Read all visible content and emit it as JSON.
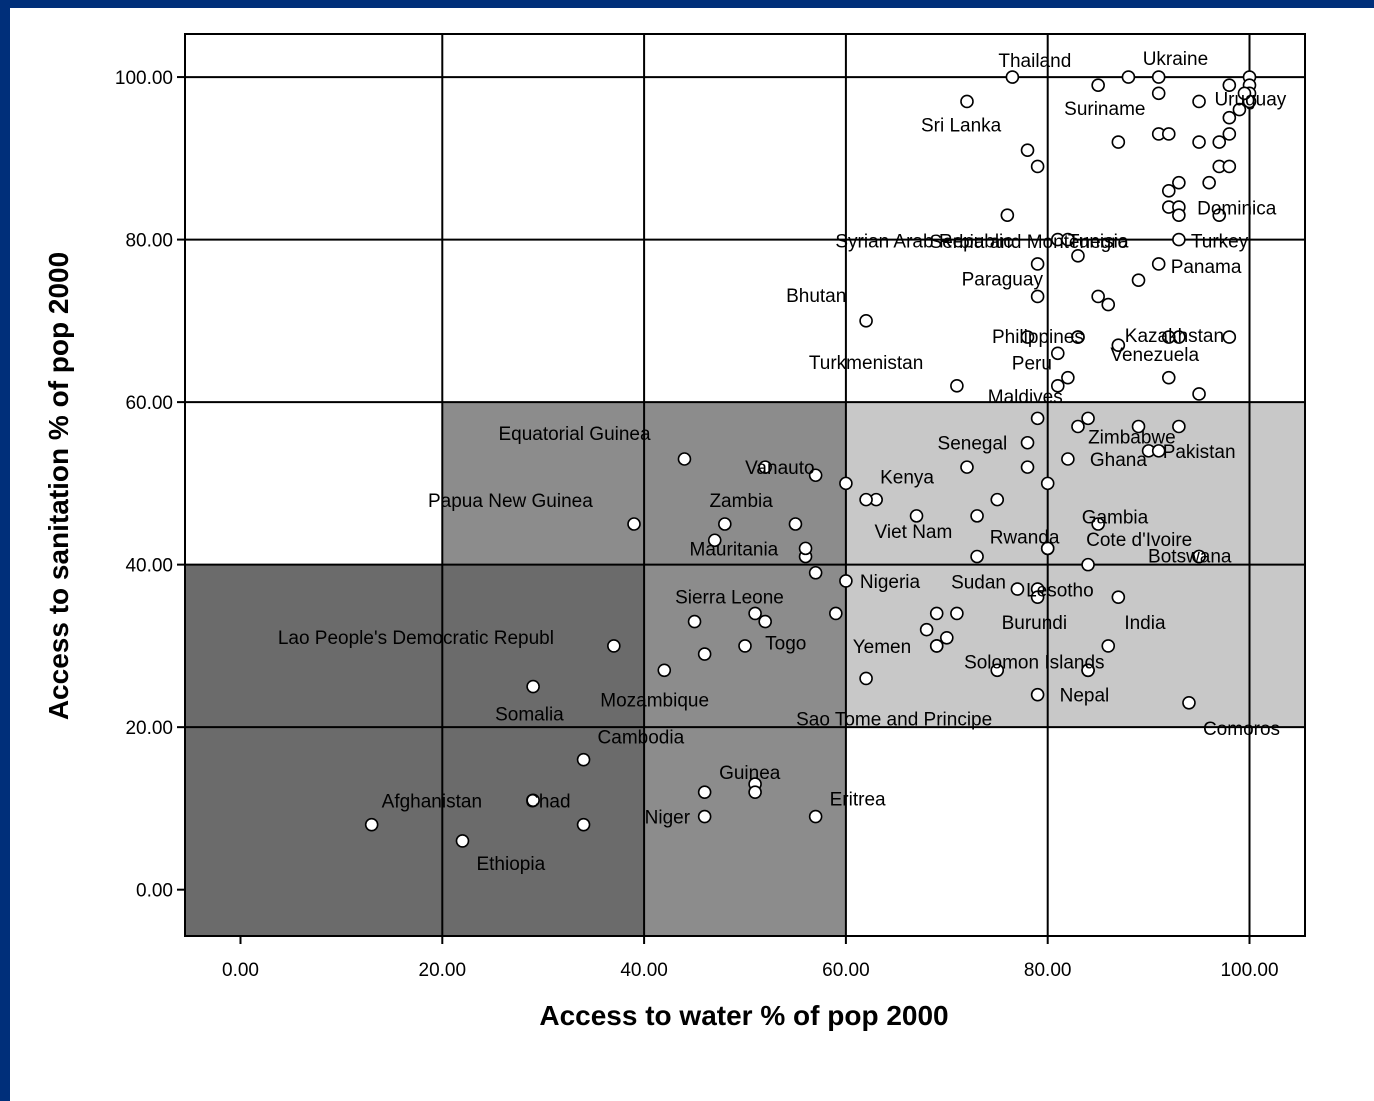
{
  "slide": {
    "background": "#002f7a"
  },
  "chart_data": {
    "type": "scatter",
    "title": "",
    "xlabel": "Access to water % of pop 2000",
    "ylabel": "Access to sanitation % of pop 2000",
    "xlim": [
      -5.5,
      105.5
    ],
    "ylim": [
      -5.7,
      105.3
    ],
    "xticks": [
      "0.00",
      "20.00",
      "40.00",
      "60.00",
      "80.00",
      "100.00"
    ],
    "yticks": [
      "0.00",
      "20.00",
      "40.00",
      "60.00",
      "80.00",
      "100.00"
    ],
    "grid": true,
    "legend": "none",
    "regions": [
      {
        "x": [
          -5.5,
          40
        ],
        "y": [
          -5.7,
          40
        ],
        "color": "#6b6b6b"
      },
      {
        "x": [
          20,
          60
        ],
        "y": [
          40,
          60
        ],
        "color": "#8c8c8c"
      },
      {
        "x": [
          40,
          60
        ],
        "y": [
          -5.7,
          40
        ],
        "color": "#8c8c8c"
      },
      {
        "x": [
          60,
          105.5
        ],
        "y": [
          20,
          60
        ],
        "color": "#c8c8c8"
      }
    ],
    "labeled_points": [
      {
        "label": "Thailand",
        "x": 76.5,
        "y": 100
      },
      {
        "label": "Ukraine",
        "x": 91,
        "y": 100
      },
      {
        "label": "Suriname",
        "x": 85,
        "y": 99
      },
      {
        "label": "Uruguay",
        "x": 99.5,
        "y": 98
      },
      {
        "label": "Sri Lanka",
        "x": 72,
        "y": 97
      },
      {
        "label": "Serbia and Montenegro",
        "x": 78,
        "y": 91
      },
      {
        "label": "Dominica",
        "x": 96,
        "y": 87
      },
      {
        "label": "Syrian Arab Republic",
        "x": 81,
        "y": 80
      },
      {
        "label": "Tunisia",
        "x": 82,
        "y": 80
      },
      {
        "label": "Turkey",
        "x": 93,
        "y": 80
      },
      {
        "label": "Paraguay",
        "x": 79,
        "y": 73
      },
      {
        "label": "Panama",
        "x": 91,
        "y": 77
      },
      {
        "label": "Bhutan",
        "x": 62,
        "y": 70
      },
      {
        "label": "Philippines",
        "x": 83,
        "y": 68
      },
      {
        "label": "Kazakhstan",
        "x": 92,
        "y": 68
      },
      {
        "label": "Turkmenistan",
        "x": 71,
        "y": 62
      },
      {
        "label": "Peru",
        "x": 81,
        "y": 66
      },
      {
        "label": "Venezuela",
        "x": 87,
        "y": 67
      },
      {
        "label": "Maldives",
        "x": 81,
        "y": 62
      },
      {
        "label": "Zimbabwe",
        "x": 84,
        "y": 58
      },
      {
        "label": "Equatorial Guinea",
        "x": 44,
        "y": 53
      },
      {
        "label": "Vanauto",
        "x": 52,
        "y": 52
      },
      {
        "label": "Senegal",
        "x": 78,
        "y": 55
      },
      {
        "label": "Ghana",
        "x": 82,
        "y": 53
      },
      {
        "label": "Kenya",
        "x": 62,
        "y": 48
      },
      {
        "label": "Gambia",
        "x": 80,
        "y": 50
      },
      {
        "label": "Pakistan",
        "x": 91,
        "y": 54
      },
      {
        "label": "Papua New Guinea",
        "x": 39,
        "y": 45
      },
      {
        "label": "Zambia",
        "x": 55,
        "y": 45
      },
      {
        "label": "Viet Nam",
        "x": 67,
        "y": 46
      },
      {
        "label": "Rwanda",
        "x": 80,
        "y": 42
      },
      {
        "label": "Cote d'Ivoire",
        "x": 85,
        "y": 45
      },
      {
        "label": "Mauritania",
        "x": 56,
        "y": 42
      },
      {
        "label": "Nigeria",
        "x": 60,
        "y": 38
      },
      {
        "label": "Sudan",
        "x": 73,
        "y": 41
      },
      {
        "label": "Lesotho",
        "x": 84,
        "y": 40
      },
      {
        "label": "Botswana",
        "x": 95,
        "y": 41
      },
      {
        "label": "Sierra Leone",
        "x": 51,
        "y": 34
      },
      {
        "label": "Lao People's Democratic Republ",
        "x": 37,
        "y": 30
      },
      {
        "label": "Togo",
        "x": 52,
        "y": 33
      },
      {
        "label": "Burundi",
        "x": 79,
        "y": 36
      },
      {
        "label": "India",
        "x": 87,
        "y": 36
      },
      {
        "label": "Yemen",
        "x": 69,
        "y": 30
      },
      {
        "label": "Solomon Islands",
        "x": 84,
        "y": 27
      },
      {
        "label": "Somalia",
        "x": 29,
        "y": 25
      },
      {
        "label": "Mozambique",
        "x": 42,
        "y": 27
      },
      {
        "label": "Nepal",
        "x": 79,
        "y": 24
      },
      {
        "label": "Sao Tome and Principe",
        "x": 62,
        "y": 26
      },
      {
        "label": "Comoros",
        "x": 94,
        "y": 23
      },
      {
        "label": "Cambodia",
        "x": 34,
        "y": 16
      },
      {
        "label": "Guinea",
        "x": 51,
        "y": 12
      },
      {
        "label": "Eritrea",
        "x": 57,
        "y": 9
      },
      {
        "label": "Afghanistan",
        "x": 13,
        "y": 8
      },
      {
        "label": "Chad",
        "x": 29,
        "y": 11
      },
      {
        "label": "Niger",
        "x": 46,
        "y": 9
      },
      {
        "label": "Ethiopia",
        "x": 22,
        "y": 6
      }
    ],
    "unlabeled_points": [
      [
        88,
        100
      ],
      [
        91,
        98
      ],
      [
        95,
        97
      ],
      [
        100,
        100
      ],
      [
        100,
        99
      ],
      [
        100,
        98
      ],
      [
        100,
        97
      ],
      [
        98,
        99
      ],
      [
        99,
        96
      ],
      [
        98,
        95
      ],
      [
        98,
        93
      ],
      [
        91,
        93
      ],
      [
        92,
        93
      ],
      [
        95,
        92
      ],
      [
        97,
        92
      ],
      [
        87,
        92
      ],
      [
        79,
        89
      ],
      [
        97,
        89
      ],
      [
        98,
        89
      ],
      [
        92,
        86
      ],
      [
        93,
        87
      ],
      [
        92,
        84
      ],
      [
        93,
        84
      ],
      [
        93,
        83
      ],
      [
        97,
        83
      ],
      [
        76,
        83
      ],
      [
        83,
        78
      ],
      [
        79,
        77
      ],
      [
        89,
        75
      ],
      [
        85,
        73
      ],
      [
        86,
        72
      ],
      [
        78,
        68
      ],
      [
        83,
        68
      ],
      [
        93,
        68
      ],
      [
        98,
        68
      ],
      [
        92,
        63
      ],
      [
        82,
        63
      ],
      [
        95,
        61
      ],
      [
        79,
        58
      ],
      [
        83,
        57
      ],
      [
        89,
        57
      ],
      [
        93,
        57
      ],
      [
        90,
        54
      ],
      [
        72,
        52
      ],
      [
        78,
        52
      ],
      [
        57,
        51
      ],
      [
        60,
        50
      ],
      [
        63,
        48
      ],
      [
        75,
        48
      ],
      [
        48,
        45
      ],
      [
        47,
        43
      ],
      [
        73,
        46
      ],
      [
        80,
        42
      ],
      [
        56,
        41
      ],
      [
        95,
        41
      ],
      [
        57,
        39
      ],
      [
        77,
        37
      ],
      [
        59,
        34
      ],
      [
        45,
        33
      ],
      [
        69,
        34
      ],
      [
        71,
        34
      ],
      [
        79,
        37
      ],
      [
        68,
        32
      ],
      [
        70,
        31
      ],
      [
        46,
        29
      ],
      [
        50,
        30
      ],
      [
        69,
        30
      ],
      [
        86,
        30
      ],
      [
        75,
        27
      ],
      [
        84,
        27
      ],
      [
        34,
        8
      ],
      [
        46,
        12
      ],
      [
        51,
        13
      ]
    ]
  }
}
